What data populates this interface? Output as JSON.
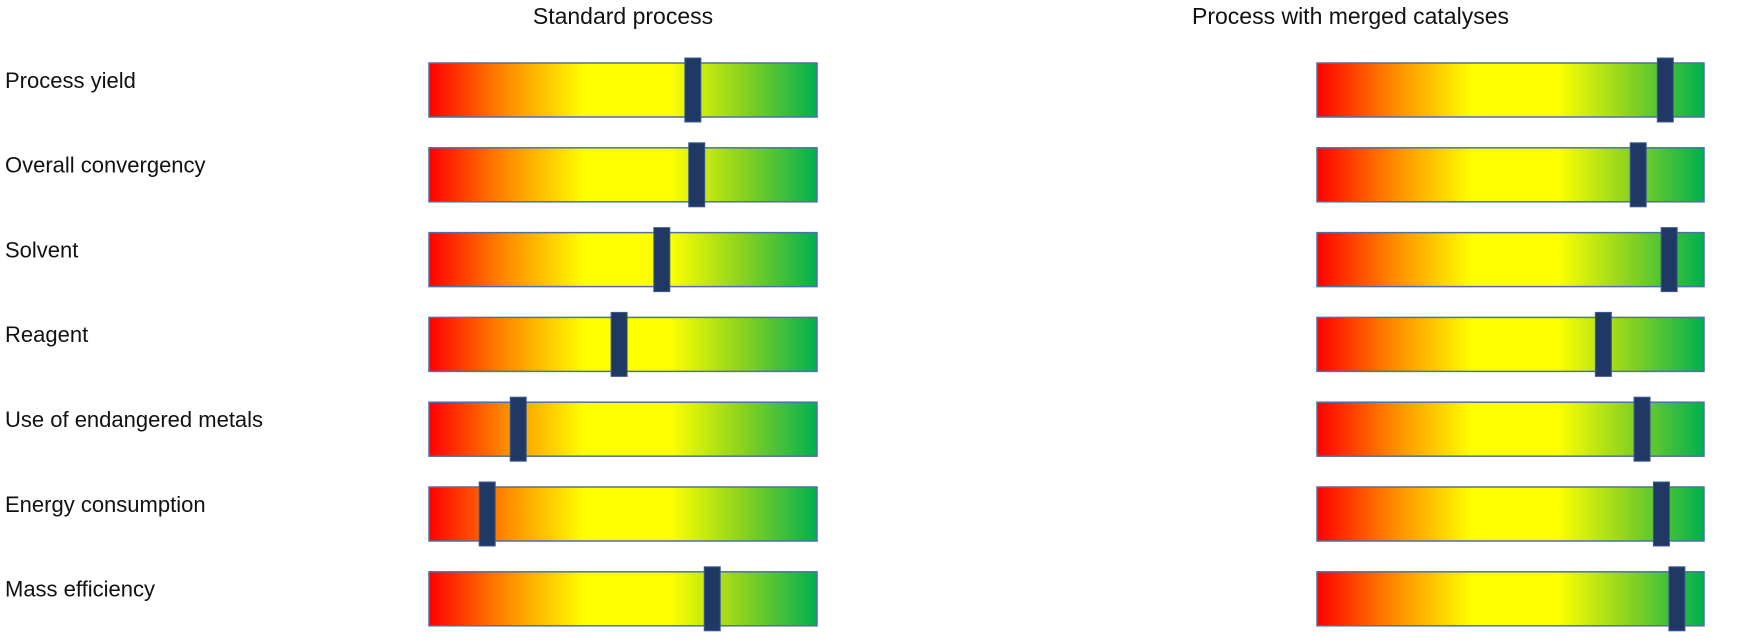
{
  "chart_data": {
    "type": "gauge",
    "categories": [
      "Process yield",
      "Overall convergency",
      "Solvent",
      "Reagent",
      "Use of endangered metals",
      "Energy consumption",
      "Mass efficiency"
    ],
    "series": [
      {
        "name": "Standard process",
        "color": "#203864",
        "values": [
          68,
          69,
          60,
          49,
          23,
          15,
          73
        ]
      },
      {
        "name": "Process with merged catalyses",
        "color": "#203864",
        "values": [
          90,
          83,
          91,
          74,
          84,
          89,
          93
        ]
      }
    ],
    "xlim": [
      0,
      100
    ]
  }
}
